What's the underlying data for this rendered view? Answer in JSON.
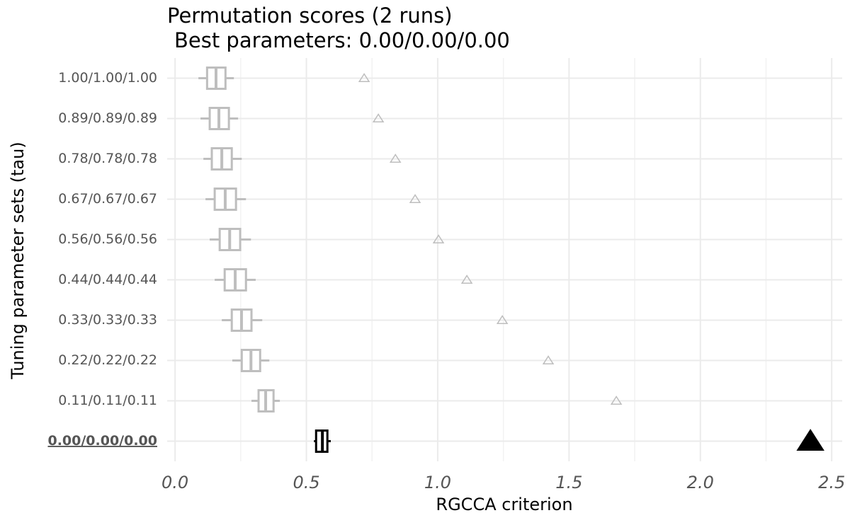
{
  "chart_data": {
    "type": "boxplot",
    "title": "Permutation scores (2 runs)",
    "subtitle": "Best parameters: 0.00/0.00/0.00",
    "x_label": "RGCCA criterion",
    "y_label": "Tuning parameter sets (tau)",
    "categories": [
      "1.00/1.00/1.00",
      "0.89/0.89/0.89",
      "0.78/0.78/0.78",
      "0.67/0.67/0.67",
      "0.56/0.56/0.56",
      "0.44/0.44/0.44",
      "0.33/0.33/0.33",
      "0.22/0.22/0.22",
      "0.11/0.11/0.11",
      "0.00/0.00/0.00"
    ],
    "whisker_low": [
      0.089,
      0.097,
      0.108,
      0.116,
      0.132,
      0.151,
      0.178,
      0.218,
      0.291,
      0.529
    ],
    "q1": [
      0.122,
      0.132,
      0.14,
      0.151,
      0.17,
      0.189,
      0.216,
      0.254,
      0.318,
      0.537
    ],
    "median": [
      0.156,
      0.167,
      0.178,
      0.191,
      0.208,
      0.229,
      0.253,
      0.289,
      0.345,
      0.561
    ],
    "q3": [
      0.192,
      0.205,
      0.216,
      0.232,
      0.248,
      0.27,
      0.291,
      0.324,
      0.375,
      0.58
    ],
    "whisker_high": [
      0.224,
      0.24,
      0.254,
      0.27,
      0.289,
      0.307,
      0.332,
      0.359,
      0.399,
      0.593
    ],
    "scores": [
      0.72,
      0.774,
      0.839,
      0.914,
      1.003,
      1.111,
      1.246,
      1.421,
      1.68,
      2.419
    ],
    "color": "#bebebe",
    "best_color": "#000000",
    "best_index": 9,
    "xlim": [
      -0.03,
      2.54
    ],
    "xticks": [
      {
        "value": 0,
        "label": "0.0"
      },
      0.5,
      {
        "value": 1,
        "label": "1.0"
      },
      1.5,
      {
        "value": 2,
        "label": "2.0"
      },
      2.5
    ],
    "minor_xticks": [
      0.25,
      0.75,
      1.25,
      1.75,
      2.25
    ],
    "grid": true
  }
}
